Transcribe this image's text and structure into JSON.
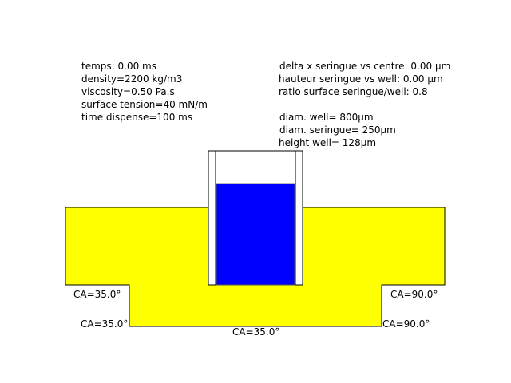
{
  "left_params": {
    "time": "temps: 0.00 ms",
    "density": "density=2200 kg/m3",
    "viscosity": "viscosity=0.50 Pa.s",
    "surface_tension": "surface tension=40 mN/m",
    "time_dispense": "time dispense=100 ms"
  },
  "right_params": {
    "delta_x": "delta x seringue vs centre: 0.00 µm",
    "height_diff": "hauteur seringue vs well: 0.00 µm",
    "ratio": "ratio surface seringue/well: 0.8",
    "diam_well": "diam. well= 800µm",
    "diam_syringe": "diam. seringue= 250µm",
    "height_well": "height well= 128µm"
  },
  "contact_angles": {
    "left_top": "CA=35.0°",
    "left_bottom": "CA=35.0°",
    "center_bottom": "CA=35.0°",
    "right_top": "CA=90.0°",
    "right_bottom": "CA=90.0°"
  },
  "colors": {
    "substrate": "#ffff00",
    "liquid": "#0000ff",
    "outline": "#000000",
    "syringe_wall": "#ffffff"
  },
  "syringe_fill_fraction": 0.76
}
